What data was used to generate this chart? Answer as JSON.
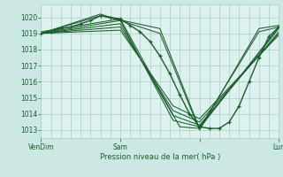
{
  "title": "Pression niveau de la mer( hPa )",
  "bg_color": "#cce8e4",
  "plot_bg_color": "#ddf2ee",
  "line_color": "#1a5c2a",
  "grid_color": "#a8cec8",
  "tick_color": "#1a5c2a",
  "yticks": [
    1013,
    1014,
    1015,
    1016,
    1017,
    1018,
    1019,
    1020
  ],
  "ylim": [
    1012.5,
    1020.8
  ],
  "xlim": [
    0,
    72
  ],
  "xtick_positions": [
    0,
    24,
    48,
    72
  ],
  "xtick_labels": [
    "VenDim",
    "Sam",
    "",
    "Lun"
  ],
  "lines": [
    {
      "x": [
        0,
        24,
        42,
        48,
        72
      ],
      "y": [
        1019.1,
        1019.9,
        1013.2,
        1013.1,
        1019.4
      ]
    },
    {
      "x": [
        0,
        24,
        40,
        48,
        72
      ],
      "y": [
        1019.0,
        1019.8,
        1013.6,
        1013.2,
        1019.3
      ]
    },
    {
      "x": [
        0,
        24,
        40,
        48,
        72
      ],
      "y": [
        1019.0,
        1019.6,
        1013.9,
        1013.3,
        1019.1
      ]
    },
    {
      "x": [
        0,
        24,
        40,
        48,
        72
      ],
      "y": [
        1019.0,
        1019.4,
        1014.2,
        1013.5,
        1019.0
      ]
    },
    {
      "x": [
        0,
        24,
        40,
        48,
        72
      ],
      "y": [
        1019.0,
        1019.2,
        1014.5,
        1013.7,
        1018.9
      ]
    },
    {
      "x": [
        0,
        18,
        36,
        48,
        66,
        72
      ],
      "y": [
        1019.0,
        1020.1,
        1019.3,
        1013.1,
        1019.1,
        1019.4
      ]
    },
    {
      "x": [
        0,
        18,
        36,
        48,
        66,
        72
      ],
      "y": [
        1019.0,
        1020.2,
        1019.0,
        1013.0,
        1019.3,
        1019.5
      ]
    },
    {
      "x": [
        0,
        3,
        6,
        9,
        12,
        15,
        18,
        21,
        24,
        27,
        30,
        33,
        36,
        39,
        42,
        45,
        48,
        51,
        54,
        57,
        60,
        63,
        66,
        69,
        72
      ],
      "y": [
        1019.0,
        1019.1,
        1019.3,
        1019.4,
        1019.6,
        1019.8,
        1020.1,
        1020.0,
        1019.9,
        1019.5,
        1019.1,
        1018.5,
        1017.6,
        1016.5,
        1015.2,
        1014.0,
        1013.2,
        1013.1,
        1013.1,
        1013.5,
        1014.5,
        1016.0,
        1017.5,
        1018.8,
        1019.4
      ],
      "marker": "+",
      "markersize": 3.5,
      "linewidth": 1.0
    }
  ]
}
